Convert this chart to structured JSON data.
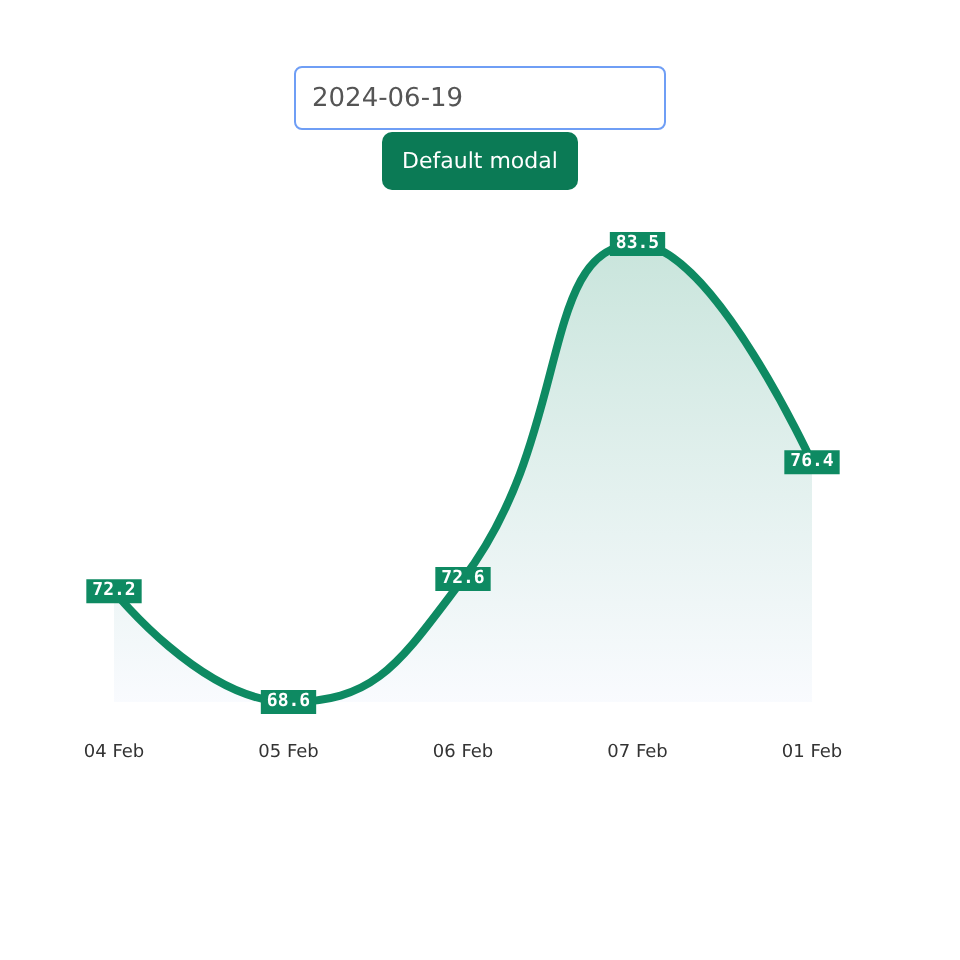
{
  "chart_data": {
    "type": "area",
    "categories": [
      "04 Feb",
      "05 Feb",
      "06 Feb",
      "07 Feb",
      "01 Feb"
    ],
    "series": [
      {
        "color": "#0e8a62",
        "values": [
          72.2,
          68.6,
          72.6,
          83.5,
          76.4
        ]
      }
    ],
    "data_labels": true,
    "tick_labels": "x",
    "grid": false,
    "annotations": [
      "2024-06-19",
      "Default modal"
    ]
  }
}
